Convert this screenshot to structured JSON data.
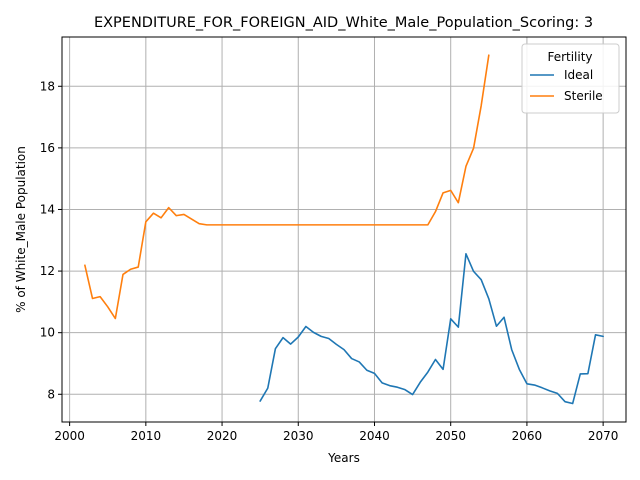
{
  "chart_data": {
    "type": "line",
    "title": "EXPENDITURE_FOR_FOREIGN_AID_White_Male_Population_Scoring: 3",
    "xlabel": "Years",
    "ylabel": "% of White_Male Population",
    "xlim": [
      1999,
      2073
    ],
    "ylim": [
      7.1,
      19.6
    ],
    "xticks": [
      2000,
      2010,
      2020,
      2030,
      2040,
      2050,
      2060,
      2070
    ],
    "yticks": [
      8,
      10,
      12,
      14,
      16,
      18
    ],
    "grid": true,
    "legend": {
      "title": "Fertility",
      "placement": "top-right"
    },
    "series": [
      {
        "name": "Ideal",
        "color": "#1f77b4",
        "points": [
          [
            2025,
            7.78
          ],
          [
            2026,
            8.2
          ],
          [
            2027,
            9.48
          ],
          [
            2028,
            9.84
          ],
          [
            2029,
            9.63
          ],
          [
            2030,
            9.86
          ],
          [
            2031,
            10.2
          ],
          [
            2032,
            10.01
          ],
          [
            2033,
            9.88
          ],
          [
            2034,
            9.81
          ],
          [
            2035,
            9.62
          ],
          [
            2036,
            9.45
          ],
          [
            2037,
            9.16
          ],
          [
            2038,
            9.05
          ],
          [
            2039,
            8.78
          ],
          [
            2040,
            8.68
          ],
          [
            2041,
            8.37
          ],
          [
            2042,
            8.28
          ],
          [
            2043,
            8.23
          ],
          [
            2044,
            8.15
          ],
          [
            2045,
            7.99
          ],
          [
            2046,
            8.39
          ],
          [
            2047,
            8.72
          ],
          [
            2048,
            9.13
          ],
          [
            2049,
            8.81
          ],
          [
            2050,
            10.45
          ],
          [
            2051,
            10.18
          ],
          [
            2052,
            12.56
          ],
          [
            2053,
            11.99
          ],
          [
            2054,
            11.72
          ],
          [
            2055,
            11.1
          ],
          [
            2056,
            10.21
          ],
          [
            2057,
            10.5
          ],
          [
            2058,
            9.45
          ],
          [
            2059,
            8.81
          ],
          [
            2060,
            8.34
          ],
          [
            2061,
            8.3
          ],
          [
            2062,
            8.21
          ],
          [
            2063,
            8.11
          ],
          [
            2064,
            8.03
          ],
          [
            2065,
            7.76
          ],
          [
            2066,
            7.7
          ],
          [
            2067,
            8.66
          ],
          [
            2068,
            8.67
          ],
          [
            2069,
            9.93
          ],
          [
            2070,
            9.88
          ]
        ]
      },
      {
        "name": "Sterile",
        "color": "#ff7f0e",
        "points": [
          [
            2002,
            12.19
          ],
          [
            2003,
            11.11
          ],
          [
            2004,
            11.17
          ],
          [
            2005,
            10.84
          ],
          [
            2006,
            10.46
          ],
          [
            2007,
            11.89
          ],
          [
            2008,
            12.06
          ],
          [
            2009,
            12.13
          ],
          [
            2010,
            13.6
          ],
          [
            2011,
            13.88
          ],
          [
            2012,
            13.73
          ],
          [
            2013,
            14.06
          ],
          [
            2014,
            13.8
          ],
          [
            2015,
            13.84
          ],
          [
            2016,
            13.69
          ],
          [
            2017,
            13.54
          ],
          [
            2018,
            13.5
          ],
          [
            2019,
            13.5
          ],
          [
            2020,
            13.5
          ],
          [
            2021,
            13.5
          ],
          [
            2022,
            13.5
          ],
          [
            2023,
            13.5
          ],
          [
            2024,
            13.5
          ],
          [
            2025,
            13.5
          ],
          [
            2026,
            13.5
          ],
          [
            2027,
            13.5
          ],
          [
            2028,
            13.5
          ],
          [
            2029,
            13.5
          ],
          [
            2030,
            13.5
          ],
          [
            2031,
            13.5
          ],
          [
            2032,
            13.5
          ],
          [
            2033,
            13.5
          ],
          [
            2034,
            13.5
          ],
          [
            2035,
            13.5
          ],
          [
            2036,
            13.5
          ],
          [
            2037,
            13.5
          ],
          [
            2038,
            13.5
          ],
          [
            2039,
            13.5
          ],
          [
            2040,
            13.5
          ],
          [
            2041,
            13.5
          ],
          [
            2042,
            13.5
          ],
          [
            2043,
            13.5
          ],
          [
            2044,
            13.5
          ],
          [
            2045,
            13.5
          ],
          [
            2046,
            13.5
          ],
          [
            2047,
            13.5
          ],
          [
            2048,
            13.93
          ],
          [
            2049,
            14.54
          ],
          [
            2050,
            14.62
          ],
          [
            2051,
            14.22
          ],
          [
            2052,
            15.4
          ],
          [
            2053,
            15.99
          ],
          [
            2054,
            17.37
          ],
          [
            2055,
            19.01
          ]
        ]
      }
    ]
  }
}
